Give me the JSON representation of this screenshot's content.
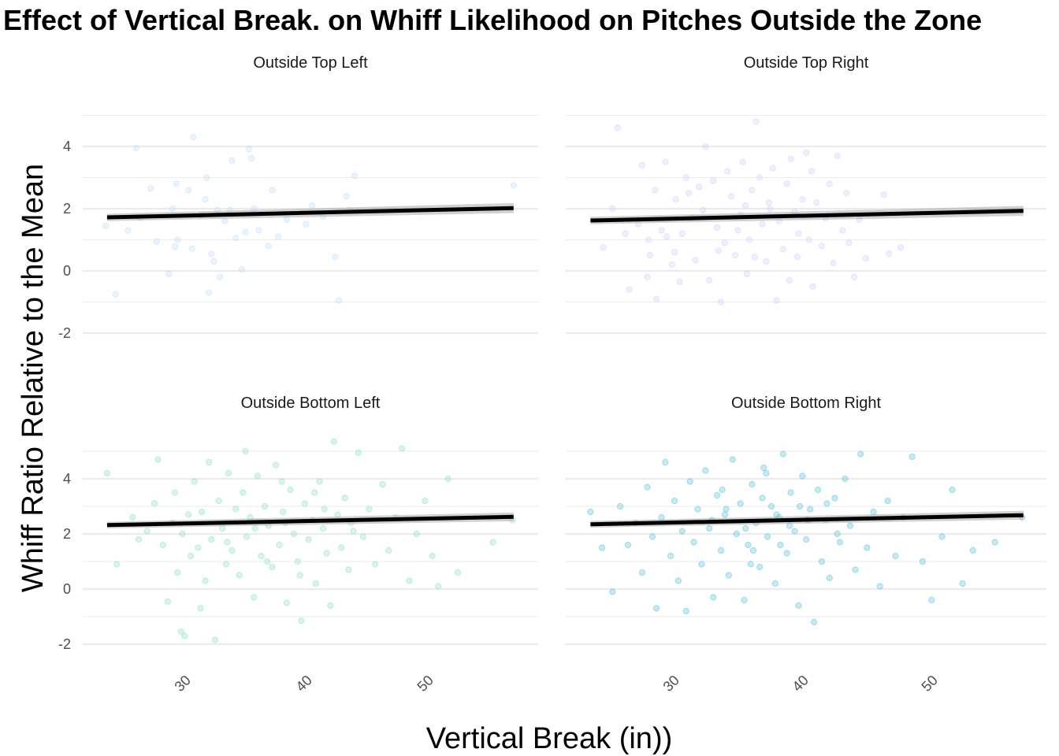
{
  "chart_data": {
    "type": "scatter",
    "title": "Effect of Vertical Break. on Whiff Likelihood on Pitches Outside the Zone",
    "xlabel": "Vertical Break (in))",
    "ylabel": "Whiff Ratio Relative to the Mean",
    "xlim": [
      22.5,
      58
    ],
    "x_ticks": [
      30,
      40,
      50
    ],
    "x_tick_labels": [
      "30",
      "40",
      "50"
    ],
    "y_ticks": [
      -2,
      0,
      2,
      4
    ],
    "y_tick_labels": [
      "-2",
      "0",
      "2",
      "4"
    ],
    "grid": true,
    "facets": [
      {
        "label": "Outside Top Left",
        "color": "#bfe0ff",
        "ylim": [
          -2.8,
          5.5
        ],
        "trend": {
          "x0": 23.5,
          "y0": 1.72,
          "x1": 57,
          "y1": 2.02
        },
        "points": [
          [
            23.4,
            1.45
          ],
          [
            24.2,
            -0.75
          ],
          [
            25.2,
            1.3
          ],
          [
            25.9,
            3.95
          ],
          [
            26.2,
            1.7
          ],
          [
            27.1,
            2.65
          ],
          [
            27.6,
            0.95
          ],
          [
            28.6,
            -0.1
          ],
          [
            28.9,
            2.0
          ],
          [
            29.1,
            0.78
          ],
          [
            29.3,
            1.0
          ],
          [
            29.2,
            2.8
          ],
          [
            30.2,
            2.6
          ],
          [
            30.5,
            0.72
          ],
          [
            30.6,
            4.3
          ],
          [
            31.2,
            1.78
          ],
          [
            31.7,
            3.0
          ],
          [
            31.6,
            2.3
          ],
          [
            32.1,
            0.55
          ],
          [
            32.3,
            0.3
          ],
          [
            32.6,
            1.95
          ],
          [
            32.8,
            -0.2
          ],
          [
            33.2,
            1.6
          ],
          [
            33.6,
            1.95
          ],
          [
            33.8,
            3.55
          ],
          [
            34.1,
            1.05
          ],
          [
            34.6,
            0.05
          ],
          [
            34.9,
            1.25
          ],
          [
            35.2,
            3.92
          ],
          [
            35.4,
            3.62
          ],
          [
            35.6,
            2.0
          ],
          [
            36.8,
            0.8
          ],
          [
            37.1,
            2.6
          ],
          [
            37.6,
            1.1
          ],
          [
            38.3,
            1.65
          ],
          [
            39.9,
            1.5
          ],
          [
            40.4,
            2.1
          ],
          [
            41.3,
            1.75
          ],
          [
            42.3,
            0.45
          ],
          [
            42.6,
            -0.95
          ],
          [
            43.2,
            2.4
          ],
          [
            43.5,
            1.95
          ],
          [
            43.9,
            3.05
          ],
          [
            31.9,
            -0.7
          ],
          [
            57,
            2.75
          ],
          [
            31.4,
            1.8
          ],
          [
            36.0,
            1.3
          ]
        ]
      },
      {
        "label": "Outside Top Right",
        "color": "#d4d0ff",
        "ylim": [
          -2.8,
          5.5
        ],
        "trend": {
          "x0": 23.5,
          "y0": 1.62,
          "x1": 57,
          "y1": 1.93
        },
        "points": [
          [
            24.5,
            0.75
          ],
          [
            25.2,
            2.0
          ],
          [
            25.6,
            4.6
          ],
          [
            26.2,
            1.2
          ],
          [
            26.5,
            -0.6
          ],
          [
            27.2,
            1.5
          ],
          [
            27.5,
            3.4
          ],
          [
            27.9,
            -0.2
          ],
          [
            28.1,
            0.5
          ],
          [
            28.5,
            2.6
          ],
          [
            28.6,
            -0.9
          ],
          [
            29.0,
            1.3
          ],
          [
            29.3,
            3.5
          ],
          [
            29.8,
            0.2
          ],
          [
            30.1,
            2.3
          ],
          [
            30.4,
            -0.35
          ],
          [
            30.6,
            1.2
          ],
          [
            30.9,
            3.0
          ],
          [
            31.3,
            1.7
          ],
          [
            31.6,
            0.35
          ],
          [
            31.9,
            2.7
          ],
          [
            32.2,
            1.95
          ],
          [
            32.4,
            4.0
          ],
          [
            32.7,
            -0.3
          ],
          [
            33.0,
            2.9
          ],
          [
            33.3,
            1.4
          ],
          [
            33.6,
            -1.0
          ],
          [
            33.9,
            0.9
          ],
          [
            34.1,
            3.2
          ],
          [
            34.4,
            2.4
          ],
          [
            34.7,
            0.5
          ],
          [
            35.1,
            1.8
          ],
          [
            35.3,
            3.5
          ],
          [
            35.6,
            -0.1
          ],
          [
            35.8,
            1.0
          ],
          [
            36.0,
            2.6
          ],
          [
            36.3,
            4.8
          ],
          [
            36.6,
            3.0
          ],
          [
            36.8,
            1.5
          ],
          [
            37.1,
            0.3
          ],
          [
            37.3,
            2.2
          ],
          [
            37.6,
            3.3
          ],
          [
            37.9,
            -0.95
          ],
          [
            38.1,
            1.6
          ],
          [
            38.4,
            0.7
          ],
          [
            38.7,
            2.8
          ],
          [
            39.0,
            3.6
          ],
          [
            39.3,
            1.9
          ],
          [
            39.5,
            0.45
          ],
          [
            39.9,
            2.3
          ],
          [
            40.2,
            3.8
          ],
          [
            40.4,
            1.0
          ],
          [
            40.7,
            -0.5
          ],
          [
            41.0,
            2.2
          ],
          [
            41.4,
            0.8
          ],
          [
            41.7,
            1.7
          ],
          [
            42.0,
            2.8
          ],
          [
            42.3,
            0.25
          ],
          [
            42.6,
            3.7
          ],
          [
            43.0,
            1.3
          ],
          [
            43.3,
            2.5
          ],
          [
            43.5,
            0.9
          ],
          [
            43.9,
            -0.2
          ],
          [
            44.3,
            1.65
          ],
          [
            44.8,
            0.4
          ],
          [
            46.2,
            2.45
          ],
          [
            46.6,
            0.55
          ],
          [
            47.5,
            0.75
          ],
          [
            29.4,
            1.1
          ],
          [
            31.1,
            2.5
          ],
          [
            33.4,
            0.65
          ],
          [
            36.2,
            0.45
          ],
          [
            38.9,
            -0.3
          ],
          [
            40.6,
            3.2
          ],
          [
            37.4,
            2.0
          ],
          [
            34.9,
            1.3
          ],
          [
            28.0,
            1.0
          ],
          [
            30.0,
            0.6
          ],
          [
            35.5,
            2.1
          ],
          [
            39.6,
            1.2
          ]
        ]
      },
      {
        "label": "Outside Bottom Left",
        "color": "#8fe2c4",
        "ylim": [
          -2.8,
          5.5
        ],
        "trend": {
          "x0": 23.5,
          "y0": 2.32,
          "x1": 57,
          "y1": 2.62
        },
        "points": [
          [
            23.5,
            4.2
          ],
          [
            24.3,
            0.9
          ],
          [
            25.6,
            2.6
          ],
          [
            26.1,
            1.8
          ],
          [
            26.8,
            2.1
          ],
          [
            27.4,
            3.1
          ],
          [
            27.7,
            4.7
          ],
          [
            28.1,
            1.6
          ],
          [
            28.5,
            -0.45
          ],
          [
            28.9,
            2.4
          ],
          [
            29.1,
            3.5
          ],
          [
            29.3,
            0.6
          ],
          [
            29.7,
            2.0
          ],
          [
            29.9,
            -1.7
          ],
          [
            30.2,
            2.7
          ],
          [
            30.4,
            1.2
          ],
          [
            30.7,
            3.9
          ],
          [
            31.0,
            1.5
          ],
          [
            31.3,
            2.8
          ],
          [
            31.6,
            0.3
          ],
          [
            31.9,
            4.6
          ],
          [
            32.1,
            1.8
          ],
          [
            32.4,
            -1.85
          ],
          [
            32.7,
            3.2
          ],
          [
            33.0,
            2.2
          ],
          [
            33.3,
            0.9
          ],
          [
            33.5,
            4.2
          ],
          [
            33.8,
            1.4
          ],
          [
            34.1,
            2.9
          ],
          [
            34.4,
            0.5
          ],
          [
            34.7,
            3.5
          ],
          [
            35.0,
            1.9
          ],
          [
            35.3,
            2.6
          ],
          [
            35.6,
            -0.3
          ],
          [
            35.9,
            4.1
          ],
          [
            36.2,
            1.2
          ],
          [
            36.5,
            3.0
          ],
          [
            36.8,
            2.3
          ],
          [
            37.1,
            0.8
          ],
          [
            37.4,
            4.5
          ],
          [
            37.7,
            1.6
          ],
          [
            38.0,
            2.8
          ],
          [
            38.3,
            -0.5
          ],
          [
            38.6,
            3.6
          ],
          [
            38.9,
            2.0
          ],
          [
            39.2,
            1.0
          ],
          [
            39.5,
            -1.15
          ],
          [
            39.8,
            3.1
          ],
          [
            40.1,
            1.8
          ],
          [
            40.4,
            2.5
          ],
          [
            40.7,
            0.2
          ],
          [
            41.0,
            3.9
          ],
          [
            41.3,
            2.2
          ],
          [
            41.6,
            1.3
          ],
          [
            41.9,
            -0.6
          ],
          [
            42.2,
            5.35
          ],
          [
            42.5,
            2.7
          ],
          [
            42.8,
            1.5
          ],
          [
            43.1,
            3.3
          ],
          [
            43.4,
            0.7
          ],
          [
            43.8,
            2.1
          ],
          [
            44.2,
            4.95
          ],
          [
            44.6,
            1.9
          ],
          [
            45.1,
            2.9
          ],
          [
            45.6,
            0.9
          ],
          [
            46.2,
            3.8
          ],
          [
            46.7,
            1.4
          ],
          [
            47.3,
            2.6
          ],
          [
            47.8,
            5.1
          ],
          [
            48.4,
            0.3
          ],
          [
            49.0,
            2.0
          ],
          [
            49.7,
            3.2
          ],
          [
            50.3,
            1.2
          ],
          [
            50.8,
            0.1
          ],
          [
            51.6,
            4.0
          ],
          [
            52.4,
            0.6
          ],
          [
            55.3,
            1.7
          ],
          [
            56.9,
            2.5
          ],
          [
            29.6,
            -1.55
          ],
          [
            31.2,
            -0.7
          ],
          [
            34.9,
            5.0
          ],
          [
            36.7,
            1.0
          ],
          [
            38.2,
            2.4
          ],
          [
            40.6,
            3.5
          ],
          [
            33.4,
            1.7
          ],
          [
            35.7,
            2.2
          ],
          [
            37.9,
            3.9
          ],
          [
            39.4,
            0.5
          ],
          [
            41.4,
            2.9
          ],
          [
            43.6,
            2.4
          ]
        ]
      },
      {
        "label": "Outside Bottom Right",
        "color": "#5bc4dc",
        "ylim": [
          -2.8,
          5.5
        ],
        "trend": {
          "x0": 23.5,
          "y0": 2.35,
          "x1": 57,
          "y1": 2.68
        },
        "points": [
          [
            23.5,
            2.8
          ],
          [
            24.4,
            1.5
          ],
          [
            25.2,
            -0.1
          ],
          [
            25.8,
            3.0
          ],
          [
            26.4,
            1.6
          ],
          [
            27.0,
            2.4
          ],
          [
            27.5,
            0.6
          ],
          [
            27.9,
            3.7
          ],
          [
            28.3,
            1.9
          ],
          [
            28.6,
            -0.7
          ],
          [
            29.0,
            2.6
          ],
          [
            29.3,
            4.6
          ],
          [
            29.7,
            1.2
          ],
          [
            30.0,
            3.2
          ],
          [
            30.3,
            0.3
          ],
          [
            30.6,
            2.1
          ],
          [
            30.9,
            -0.8
          ],
          [
            31.2,
            3.9
          ],
          [
            31.5,
            1.7
          ],
          [
            31.8,
            2.9
          ],
          [
            32.1,
            0.9
          ],
          [
            32.4,
            4.3
          ],
          [
            32.7,
            2.2
          ],
          [
            33.0,
            -0.3
          ],
          [
            33.3,
            3.4
          ],
          [
            33.6,
            1.4
          ],
          [
            33.9,
            2.7
          ],
          [
            34.2,
            0.5
          ],
          [
            34.5,
            4.7
          ],
          [
            34.8,
            2.0
          ],
          [
            35.1,
            3.1
          ],
          [
            35.4,
            -0.4
          ],
          [
            35.7,
            1.6
          ],
          [
            36.0,
            3.8
          ],
          [
            36.3,
            2.4
          ],
          [
            36.6,
            0.8
          ],
          [
            36.9,
            4.4
          ],
          [
            37.2,
            1.9
          ],
          [
            37.5,
            3.0
          ],
          [
            37.8,
            0.2
          ],
          [
            38.1,
            2.6
          ],
          [
            38.4,
            4.9
          ],
          [
            38.7,
            1.3
          ],
          [
            39.0,
            3.5
          ],
          [
            39.3,
            2.1
          ],
          [
            39.6,
            -0.6
          ],
          [
            39.9,
            4.1
          ],
          [
            40.2,
            1.8
          ],
          [
            40.5,
            2.9
          ],
          [
            40.8,
            -1.2
          ],
          [
            41.1,
            3.6
          ],
          [
            41.4,
            1.0
          ],
          [
            41.7,
            2.5
          ],
          [
            42.0,
            0.4
          ],
          [
            42.4,
            3.3
          ],
          [
            42.8,
            1.7
          ],
          [
            43.2,
            4.0
          ],
          [
            43.6,
            2.3
          ],
          [
            44.0,
            0.7
          ],
          [
            44.4,
            4.9
          ],
          [
            44.9,
            1.5
          ],
          [
            45.4,
            2.8
          ],
          [
            45.9,
            0.1
          ],
          [
            46.5,
            3.2
          ],
          [
            47.1,
            1.2
          ],
          [
            47.7,
            2.6
          ],
          [
            48.4,
            4.8
          ],
          [
            49.2,
            1.0
          ],
          [
            49.9,
            -0.4
          ],
          [
            50.7,
            1.9
          ],
          [
            51.5,
            3.6
          ],
          [
            52.3,
            0.2
          ],
          [
            53.1,
            1.4
          ],
          [
            54.8,
            1.7
          ],
          [
            56.9,
            2.6
          ],
          [
            34.0,
            2.9
          ],
          [
            35.5,
            2.2
          ],
          [
            36.8,
            3.3
          ],
          [
            37.9,
            2.7
          ],
          [
            38.9,
            2.3
          ],
          [
            39.7,
            3.0
          ],
          [
            40.3,
            2.5
          ],
          [
            36.1,
            1.4
          ],
          [
            33.7,
            3.6
          ],
          [
            41.8,
            3.1
          ],
          [
            32.9,
            2.5
          ],
          [
            38.2,
            1.6
          ],
          [
            42.6,
            2.0
          ],
          [
            35.9,
            0.9
          ],
          [
            37.1,
            4.2
          ]
        ]
      }
    ]
  }
}
